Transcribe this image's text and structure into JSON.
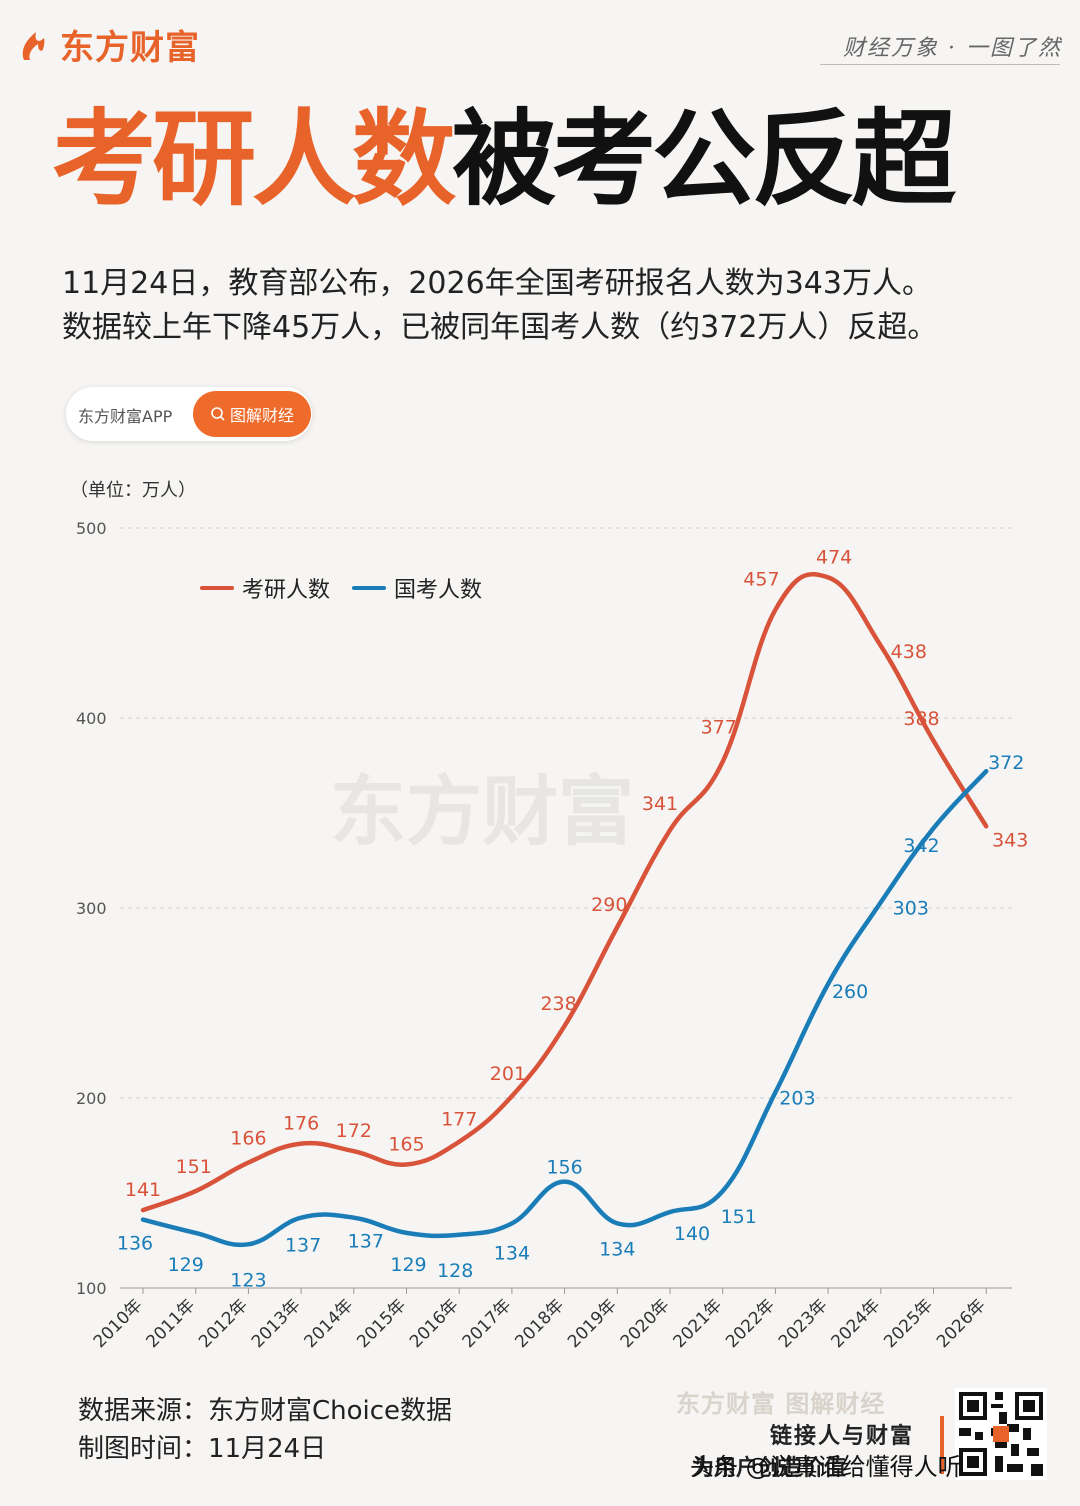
{
  "header": {
    "brand": "东方财富",
    "slogan": "财经万象 · 一图了然"
  },
  "headline": {
    "part1": "考研人数",
    "part2": "被考公反超"
  },
  "intro": {
    "line1": "11月24日，教育部公布，2026年全国考研报名人数为343万人。",
    "line2": "数据较上年下降45万人，已被同年国考人数（约372万人）反超。"
  },
  "search": {
    "app_label": "东方财富APP",
    "button_label": "图解财经"
  },
  "chart_data": {
    "type": "line",
    "unit": "（单位：万人）",
    "categories": [
      "2010年",
      "2011年",
      "2012年",
      "2013年",
      "2014年",
      "2015年",
      "2016年",
      "2017年",
      "2018年",
      "2019年",
      "2020年",
      "2021年",
      "2022年",
      "2023年",
      "2024年",
      "2025年",
      "2026年"
    ],
    "series": [
      {
        "name": "考研人数",
        "color": "#d8533a",
        "values": [
          141,
          151,
          166,
          176,
          172,
          165,
          177,
          201,
          238,
          290,
          341,
          377,
          457,
          474,
          438,
          388,
          343
        ]
      },
      {
        "name": "国考人数",
        "color": "#1b7db8",
        "values": [
          136,
          129,
          123,
          137,
          137,
          129,
          128,
          134,
          156,
          134,
          140,
          151,
          203,
          260,
          303,
          342,
          372
        ]
      }
    ],
    "yticks": [
      "100",
      "200",
      "300",
      "400",
      "500"
    ],
    "ylim": [
      100,
      500
    ],
    "grid": true,
    "legend": "top-left",
    "watermark": "东方财富"
  },
  "footer": {
    "source": "数据来源：东方财富Choice数据",
    "date": "制图时间：11月24日",
    "brand_caption": "东方财富 图解财经",
    "tagline1": "链接人与财富",
    "tagline2": "为用户创造价值",
    "overlay": "头条 @说真话给懂得人听"
  },
  "colors": {
    "accent": "#e8632a",
    "kaoyan": "#d8533a",
    "guokao": "#1b7db8"
  }
}
